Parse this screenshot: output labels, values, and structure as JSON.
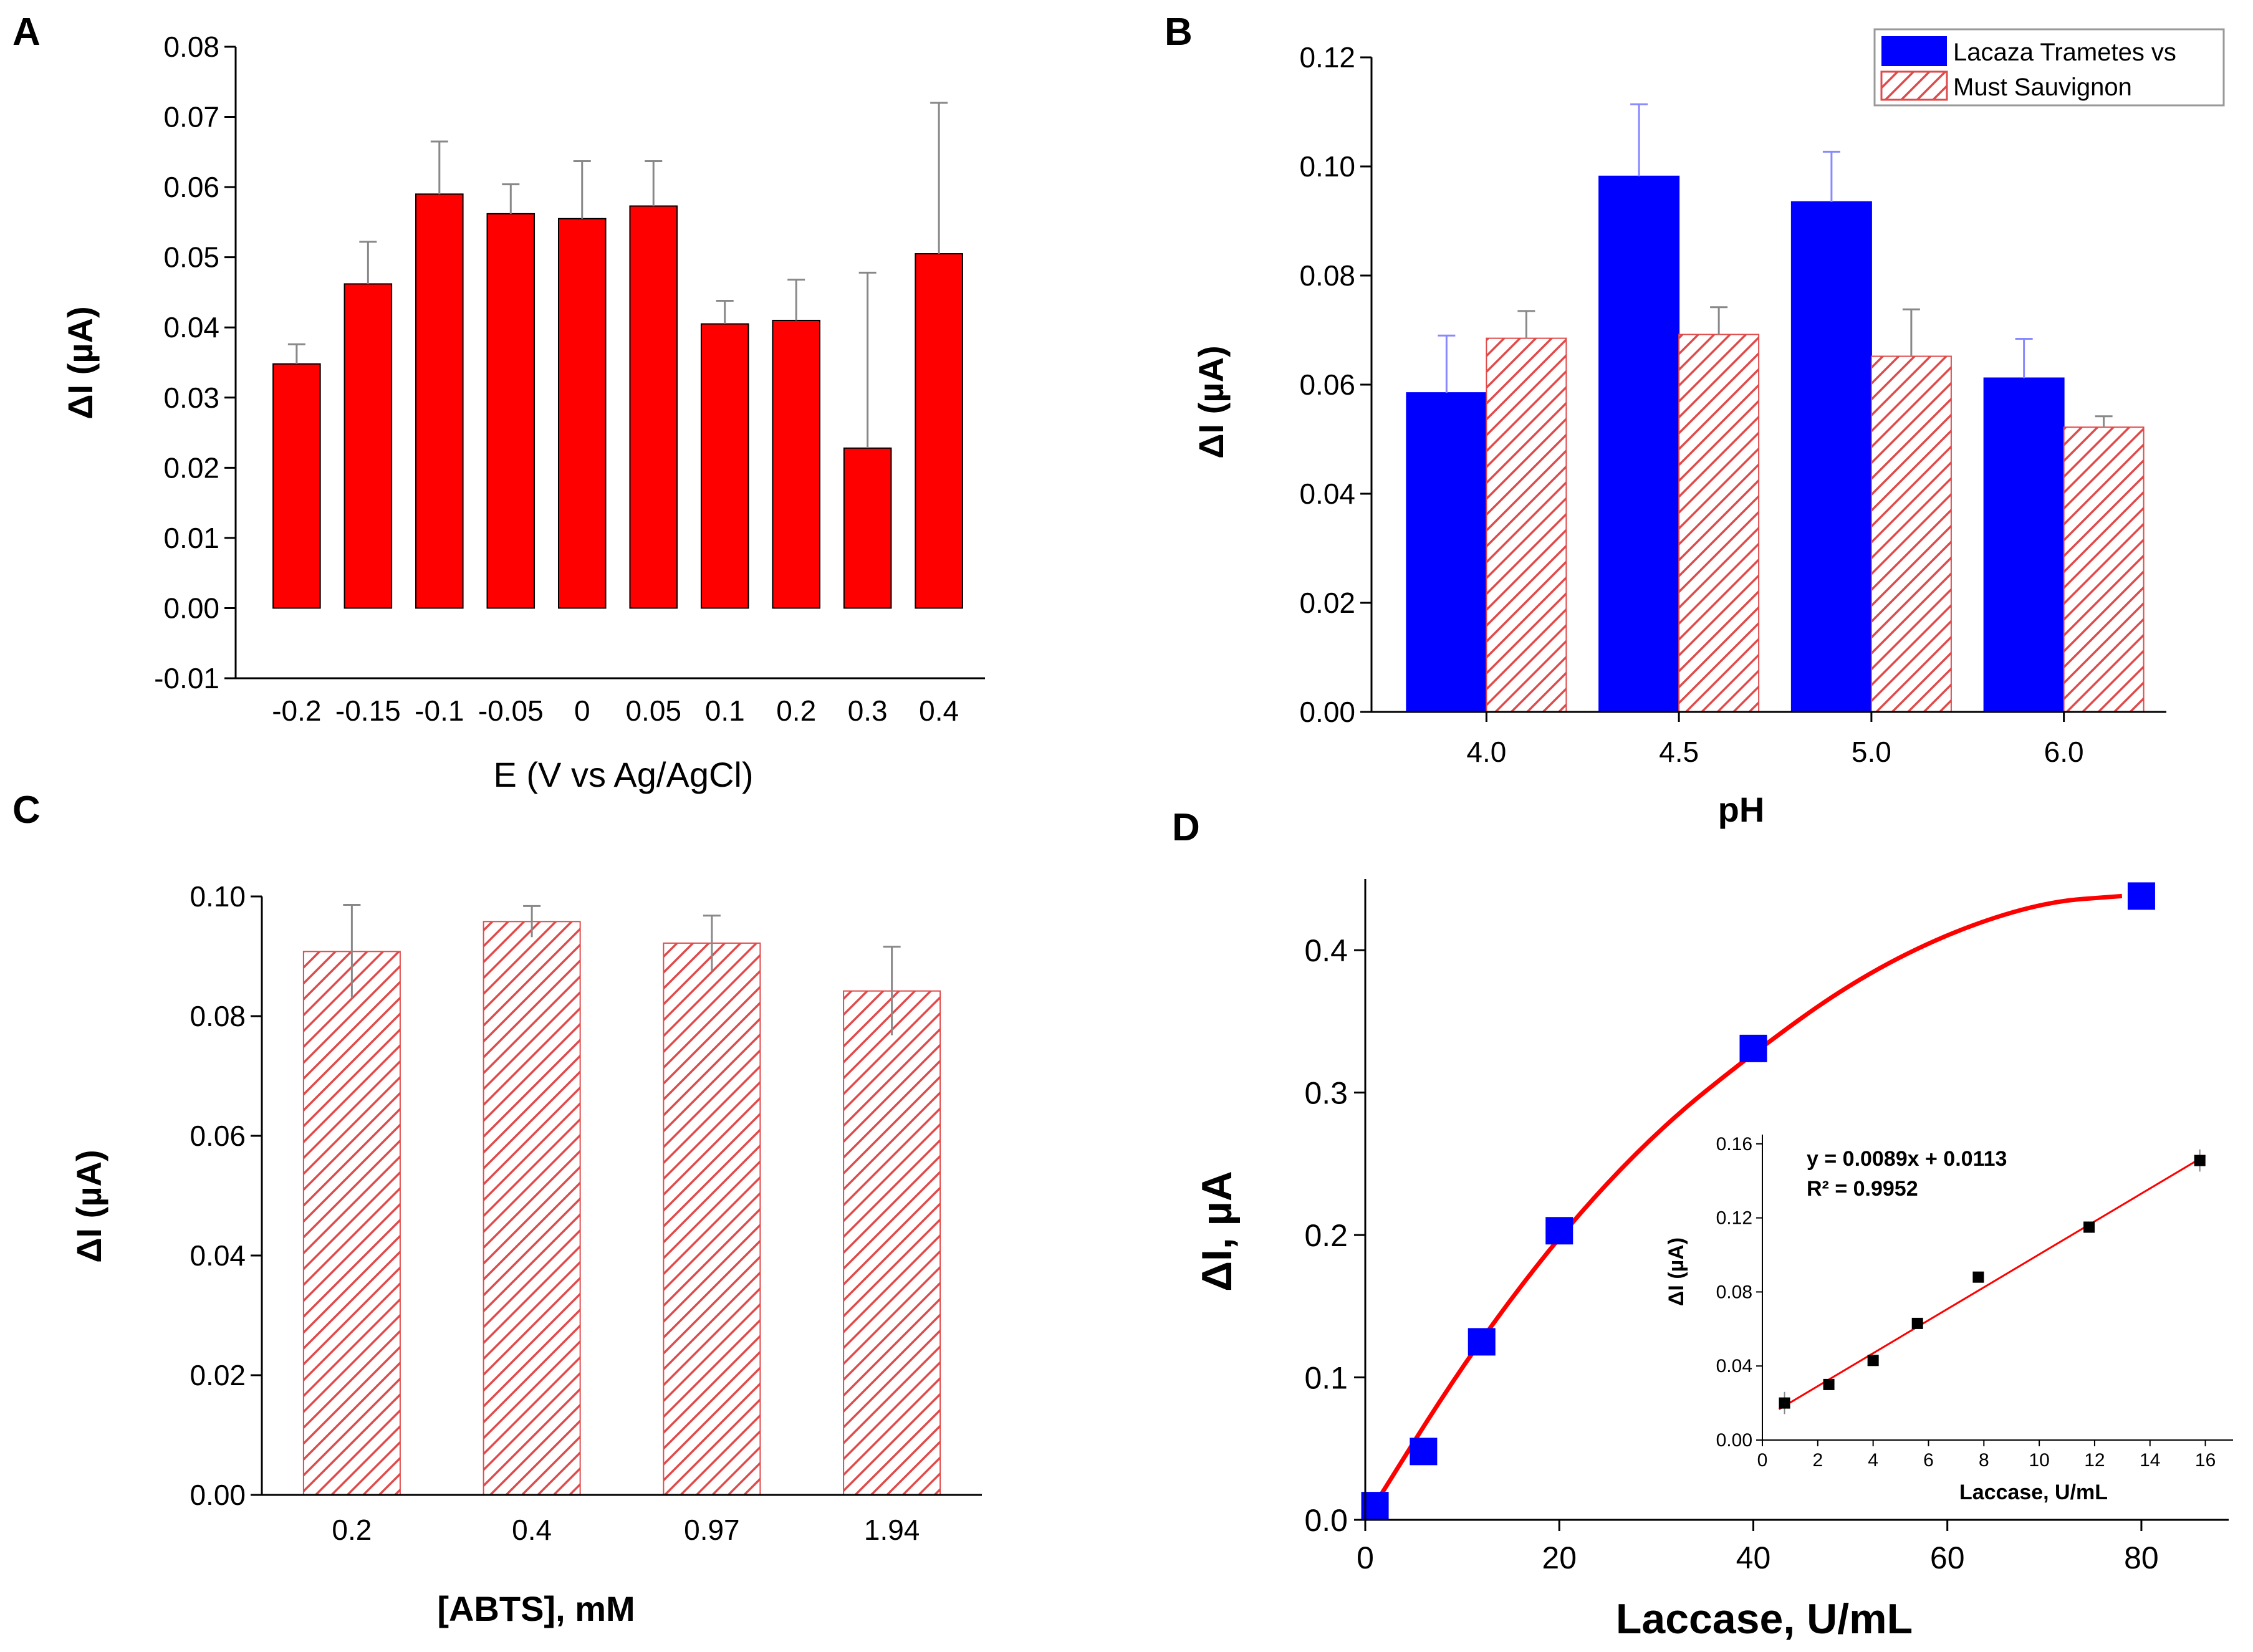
{
  "colors": {
    "red": "#ff0000",
    "blue": "#0000ff",
    "hatch": "#e04a4a",
    "hatch_bg": "#ffffff",
    "error": "#888888",
    "fit": "#ff0000",
    "inset_marker": "#000000"
  },
  "chart_data": [
    {
      "panel": "A",
      "type": "bar",
      "categories": [
        "-0.2",
        "-0.15",
        "-0.1",
        "-0.05",
        "0",
        "0.05",
        "0.1",
        "0.2",
        "0.3",
        "0.4"
      ],
      "values": [
        0.0348,
        0.0462,
        0.059,
        0.0562,
        0.0555,
        0.0573,
        0.0405,
        0.041,
        0.0228,
        0.0505
      ],
      "errors": [
        0.0028,
        0.006,
        0.0075,
        0.0042,
        0.0082,
        0.0064,
        0.0033,
        0.0058,
        0.025,
        0.0215
      ],
      "xlabel": "E (V vs Ag/AgCl)",
      "ylabel": "ΔI (µA)",
      "ylim": [
        -0.01,
        0.08
      ],
      "yticks": [
        "-0.01",
        "0.00",
        "0.01",
        "0.02",
        "0.03",
        "0.04",
        "0.05",
        "0.06",
        "0.07",
        "0.08"
      ],
      "color": "red"
    },
    {
      "panel": "B",
      "type": "bar",
      "categories": [
        "4.0",
        "4.5",
        "5.0",
        "6.0"
      ],
      "series": [
        {
          "name": "Lacaza Trametes vs",
          "values": [
            0.0585,
            0.0982,
            0.0935,
            0.0612
          ],
          "errors": [
            0.0105,
            0.0132,
            0.0092,
            0.0072
          ],
          "fill": "blue"
        },
        {
          "name": "Must Sauvignon",
          "values": [
            0.0685,
            0.0692,
            0.0652,
            0.0522
          ],
          "errors": [
            0.005,
            0.005,
            0.0086,
            0.002
          ],
          "fill": "hatch"
        }
      ],
      "xlabel": "pH",
      "ylabel": "ΔI (µA)",
      "ylim": [
        0,
        0.12
      ],
      "yticks": [
        "0.00",
        "0.02",
        "0.04",
        "0.06",
        "0.08",
        "0.10",
        "0.12"
      ],
      "legend_position": "top-right"
    },
    {
      "panel": "C",
      "type": "bar",
      "categories": [
        "0.2",
        "0.4",
        "0.97",
        "1.94"
      ],
      "values": [
        0.0908,
        0.0958,
        0.0922,
        0.0842
      ],
      "errors": [
        0.0078,
        0.0026,
        0.0046,
        0.0074
      ],
      "xlabel": "[ABTS], mM",
      "ylabel": "ΔI (µA)",
      "ylim": [
        0,
        0.1
      ],
      "yticks": [
        "0.00",
        "0.02",
        "0.04",
        "0.06",
        "0.08",
        "0.10"
      ],
      "fill": "hatch"
    },
    {
      "panel": "D",
      "type": "scatter",
      "x": [
        1,
        6,
        12,
        20,
        40,
        80
      ],
      "y": [
        0.01,
        0.048,
        0.125,
        0.203,
        0.331,
        0.438
      ],
      "fit_curve": {
        "x": [
          0,
          10,
          20,
          30,
          40,
          50,
          60,
          70,
          78
        ],
        "y": [
          0.0,
          0.109,
          0.2,
          0.273,
          0.328,
          0.377,
          0.412,
          0.434,
          0.438
        ]
      },
      "xlabel": "Laccase, U/mL",
      "ylabel": "ΔI, µA",
      "xlim": [
        0,
        89
      ],
      "ylim": [
        0,
        0.45
      ],
      "xticks": [
        "0",
        "20",
        "40",
        "60",
        "80"
      ],
      "yticks": [
        "0.0",
        "0.1",
        "0.2",
        "0.3",
        "0.4"
      ],
      "inset": {
        "type": "scatter",
        "x": [
          0.8,
          2.4,
          4.0,
          5.6,
          7.8,
          11.8,
          15.8
        ],
        "y": [
          0.02,
          0.03,
          0.043,
          0.063,
          0.088,
          0.115,
          0.151
        ],
        "errors": [
          0.006,
          0.002,
          0.003,
          0.002,
          0.002,
          0.002,
          0.006
        ],
        "fit": {
          "slope": 0.0089,
          "intercept": 0.0113
        },
        "equation": "y = 0.0089x + 0.0113",
        "r2": "R² = 0.9952",
        "xlabel": "Laccase, U/mL",
        "ylabel": "ΔI (µA)",
        "xlim": [
          0,
          17
        ],
        "ylim": [
          0,
          0.165
        ],
        "xticks": [
          "0",
          "2",
          "4",
          "6",
          "8",
          "10",
          "12",
          "14",
          "16"
        ],
        "yticks": [
          "0.00",
          "0.04",
          "0.08",
          "0.12",
          "0.16"
        ]
      }
    }
  ]
}
